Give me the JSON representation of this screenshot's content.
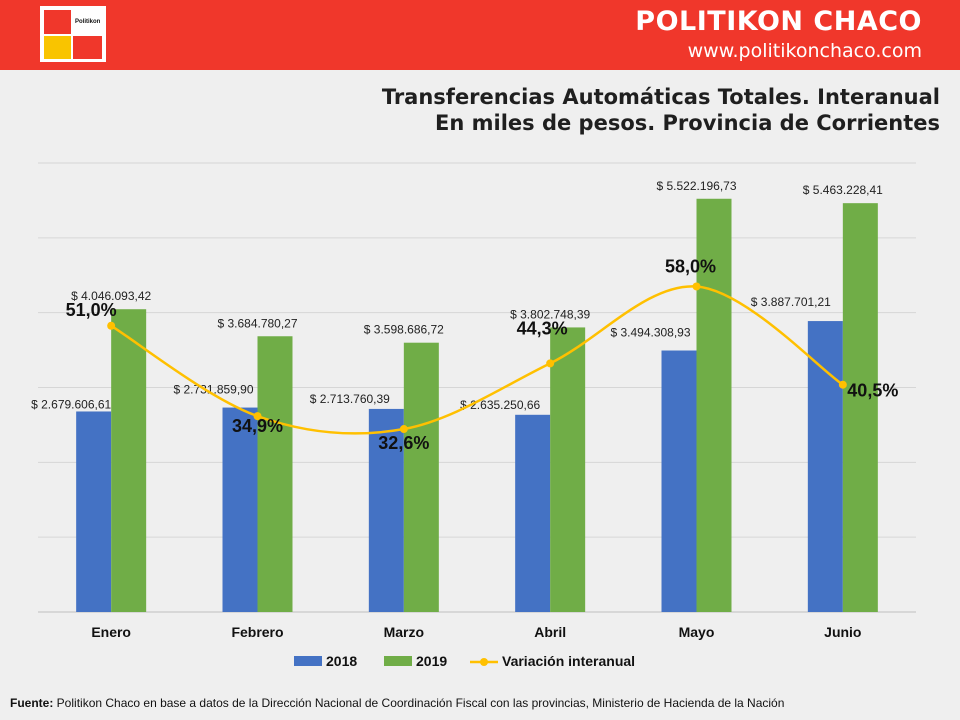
{
  "header": {
    "brand_name": "POLITIKON CHACO",
    "brand_url": "www.politikonchaco.com",
    "logo_text": "Politikon"
  },
  "colors": {
    "header_bg": "#f0372b",
    "series_2018": "#4472c4",
    "series_2019": "#70ad47",
    "variation_line": "#ffc000"
  },
  "chart_data": {
    "type": "bar",
    "title_line1": "Transferencias Automáticas Totales. Interanual",
    "title_line2": "En miles de pesos. Provincia de Corrientes",
    "categories": [
      "Enero",
      "Febrero",
      "Marzo",
      "Abril",
      "Mayo",
      "Junio"
    ],
    "series": [
      {
        "name": "2018",
        "values": [
          2679606.61,
          2731859.9,
          2713760.39,
          2635250.66,
          3494308.93,
          3887701.21
        ],
        "labels": [
          "$ 2.679.606,61",
          "$ 2.731.859,90",
          "$ 2.713.760,39",
          "$ 2.635.250,66",
          "$ 3.494.308,93",
          "$ 3.887.701,21"
        ]
      },
      {
        "name": "2019",
        "values": [
          4046093.42,
          3684780.27,
          3598686.72,
          3802748.39,
          5522196.73,
          5463228.41
        ],
        "labels": [
          "$ 4.046.093,42",
          "$ 3.684.780,27",
          "$ 3.598.686,72",
          "$ 3.802.748,39",
          "$ 5.522.196,73",
          "$ 5.463.228,41"
        ]
      }
    ],
    "line_series": {
      "name": "Variación interanual",
      "values": [
        51.0,
        34.9,
        32.6,
        44.3,
        58.0,
        40.5
      ],
      "labels": [
        "51,0%",
        "34,9%",
        "32,6%",
        "44,3%",
        "58,0%",
        "40,5%"
      ]
    },
    "ylim": [
      0,
      6000000
    ],
    "y2lim": [
      0,
      80
    ],
    "grid": true,
    "legend": "bottom"
  },
  "footer": {
    "source_label": "Fuente:",
    "source_text": " Politikon Chaco en base a datos de la Dirección Nacional de Coordinación  Fiscal con las provincias,  Ministerio de Hacienda de la Nación"
  }
}
